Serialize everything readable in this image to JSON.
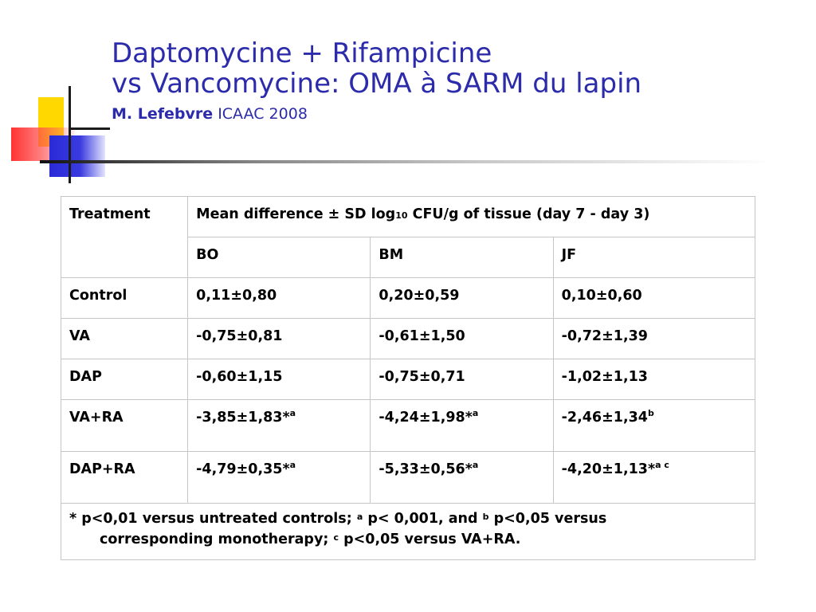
{
  "slide": {
    "title_line1": "Daptomycine + Rifampicine",
    "title_line2": "vs Vancomycine: OMA à SARM du lapin",
    "author": "M. Lefebvre",
    "conference": "ICAAC 2008"
  },
  "table": {
    "header": {
      "treatment": "Treatment",
      "mean_prefix": "Mean difference ± SD log",
      "mean_subscript": "10",
      "mean_suffix": " CFU/g of tissue (day 7 - day 3)",
      "columns": [
        "BO",
        "BM",
        "JF"
      ]
    },
    "rows": [
      {
        "treatment": "Control",
        "values": [
          "0,11±0,80",
          "0,20±0,59",
          "0,10±0,60"
        ],
        "marks": [
          "",
          "",
          ""
        ]
      },
      {
        "treatment": "VA",
        "values": [
          "-0,75±0,81",
          "-0,61±1,50",
          "-0,72±1,39"
        ],
        "marks": [
          "",
          "",
          ""
        ]
      },
      {
        "treatment": "DAP",
        "values": [
          "-0,60±1,15",
          "-0,75±0,71",
          "-1,02±1,13"
        ],
        "marks": [
          "",
          "",
          ""
        ]
      },
      {
        "treatment": "VA+RA",
        "values": [
          "-3,85±1,83*",
          "-4,24±1,98*",
          "-2,46±1,34"
        ],
        "marks": [
          "a",
          "a",
          "b"
        ]
      },
      {
        "treatment": "DAP+RA",
        "values": [
          "-4,79±0,35*",
          "-5,33±0,56*",
          "-4,20±1,13*"
        ],
        "marks": [
          "a",
          "a",
          "a c"
        ]
      }
    ],
    "footnote": {
      "part1": "* p<0,01 versus untreated controls; ",
      "mark_a": "a",
      "part2": " p< 0,001, and ",
      "mark_b": "b",
      "part3": " p<0,05 versus",
      "part4": "corresponding monotherapy; ",
      "mark_c": "c",
      "part5": " p<0,05 versus VA+RA."
    }
  },
  "colors": {
    "title": "#2b2bab",
    "deco_yellow": "#ffd800",
    "deco_red": "#ff2828",
    "deco_blue": "#2a2ad8",
    "table_border": "#c6c6c6"
  }
}
